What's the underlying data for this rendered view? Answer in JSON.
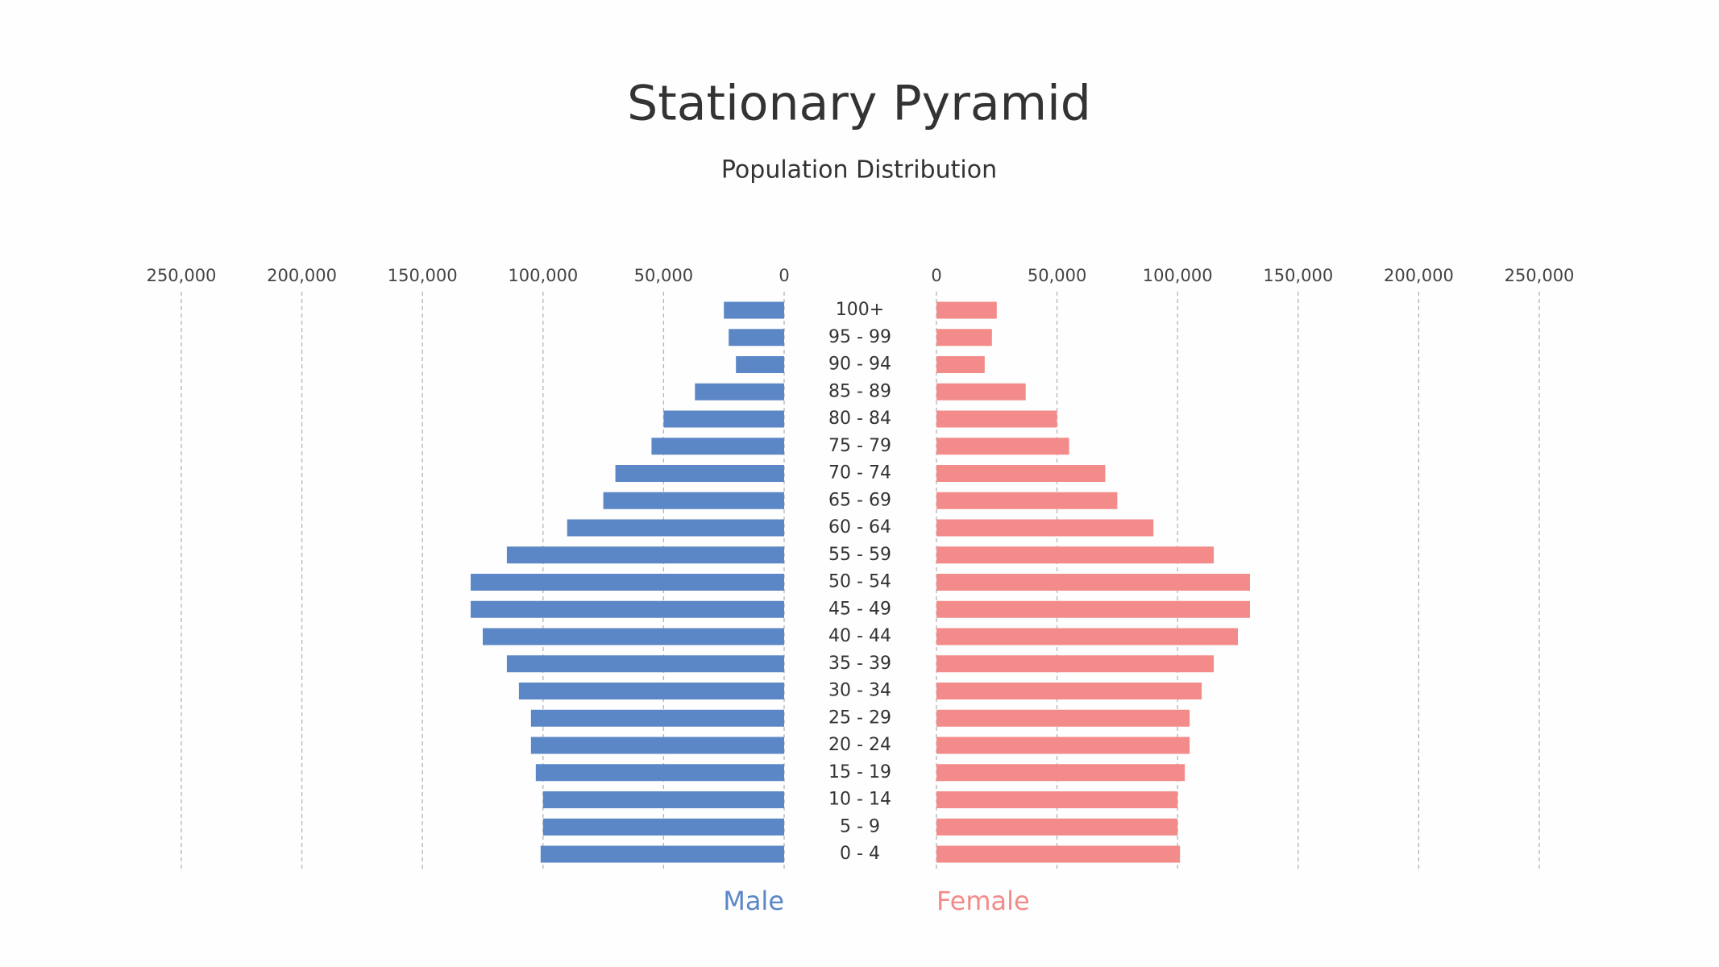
{
  "chart_data": {
    "type": "pyramid",
    "title": "Stationary Pyramid",
    "subtitle": "Population Distribution",
    "categories": [
      "100+",
      "95 - 99",
      "90 - 94",
      "85 - 89",
      "80 - 84",
      "75 - 79",
      "70 - 74",
      "65 - 69",
      "60 - 64",
      "55 - 59",
      "50 - 54",
      "45 - 49",
      "40 - 44",
      "35 - 39",
      "30 - 34",
      "25 - 29",
      "20 - 24",
      "15 - 19",
      "10 - 14",
      "5 - 9",
      "0 - 4"
    ],
    "series": [
      {
        "name": "Male",
        "color": "#5b87c6",
        "values": [
          25000,
          23000,
          20000,
          37000,
          50000,
          55000,
          70000,
          75000,
          90000,
          115000,
          130000,
          130000,
          125000,
          115000,
          110000,
          105000,
          105000,
          103000,
          100000,
          100000,
          101000
        ]
      },
      {
        "name": "Female",
        "color": "#f28b89",
        "values": [
          25000,
          23000,
          20000,
          37000,
          50000,
          55000,
          70000,
          75000,
          90000,
          115000,
          130000,
          130000,
          125000,
          115000,
          110000,
          105000,
          105000,
          103000,
          100000,
          100000,
          101000
        ]
      }
    ],
    "xlim": [
      0,
      250000
    ],
    "xticks": [
      0,
      {
        "value": 50000,
        "label": "50,000"
      },
      {
        "value": 100000,
        "label": "100,000"
      },
      {
        "value": 150000,
        "label": "150,000"
      },
      {
        "value": 200000,
        "label": "200,000"
      },
      {
        "value": 250000,
        "label": "250,000"
      }
    ],
    "grid": true
  }
}
